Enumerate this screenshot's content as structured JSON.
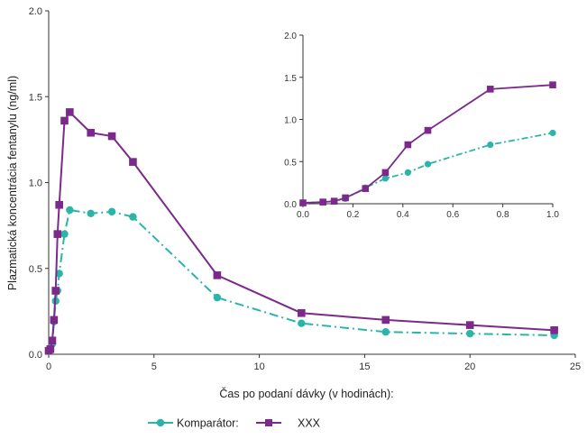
{
  "chart_data": {
    "type": "line",
    "xlabel": "Čas po podaní dávky (v hodinách):",
    "ylabel": "Plazmatická koncentrácia fentanylu (ng/ml)",
    "xlim": [
      0,
      25
    ],
    "ylim": [
      0,
      2.0
    ],
    "xticks": [
      "0",
      "5",
      "10",
      "15",
      "20",
      "25"
    ],
    "yticks": [
      "0.0",
      "0.5",
      "1.0",
      "1.5",
      "2.0"
    ],
    "grid": false,
    "legend_position": "bottom-center",
    "series": [
      {
        "name": "Komparátor:",
        "color": "#2bb5a8",
        "line_style": "dash-dot",
        "marker": "circle",
        "x": [
          0,
          0.08,
          0.17,
          0.25,
          0.33,
          0.42,
          0.5,
          0.75,
          1,
          2,
          3,
          4,
          8,
          12,
          16,
          20,
          24
        ],
        "y": [
          0.02,
          0.03,
          0.06,
          0.19,
          0.31,
          0.37,
          0.47,
          0.7,
          0.84,
          0.82,
          0.83,
          0.8,
          0.33,
          0.18,
          0.13,
          0.12,
          0.11
        ]
      },
      {
        "name": "XXX",
        "color": "#7b2a8c",
        "line_style": "solid",
        "marker": "square",
        "x": [
          0,
          0.08,
          0.17,
          0.25,
          0.33,
          0.42,
          0.5,
          0.75,
          1,
          2,
          3,
          4,
          8,
          12,
          16,
          20,
          24
        ],
        "y": [
          0.02,
          0.03,
          0.08,
          0.2,
          0.37,
          0.7,
          0.87,
          1.36,
          1.41,
          1.29,
          1.27,
          1.12,
          0.46,
          0.24,
          0.2,
          0.17,
          0.14
        ]
      }
    ],
    "inset": {
      "xlim": [
        0,
        1.0
      ],
      "ylim": [
        0,
        2.0
      ],
      "xticks": [
        "0.0",
        "0.2",
        "0.4",
        "0.6",
        "0.8",
        "1.0"
      ],
      "yticks": [
        "0.0",
        "0.5",
        "1.0",
        "1.5",
        "2.0"
      ],
      "series": [
        {
          "name": "Komparátor:",
          "x": [
            0,
            0.08,
            0.125,
            0.17,
            0.25,
            0.33,
            0.42,
            0.5,
            0.75,
            1.0
          ],
          "y": [
            0.01,
            0.02,
            0.03,
            0.06,
            0.19,
            0.3,
            0.37,
            0.47,
            0.7,
            0.84
          ]
        },
        {
          "name": "XXX",
          "x": [
            0,
            0.08,
            0.125,
            0.17,
            0.25,
            0.33,
            0.42,
            0.5,
            0.75,
            1.0
          ],
          "y": [
            0.01,
            0.02,
            0.03,
            0.07,
            0.18,
            0.37,
            0.7,
            0.87,
            1.36,
            1.41
          ]
        }
      ]
    }
  }
}
